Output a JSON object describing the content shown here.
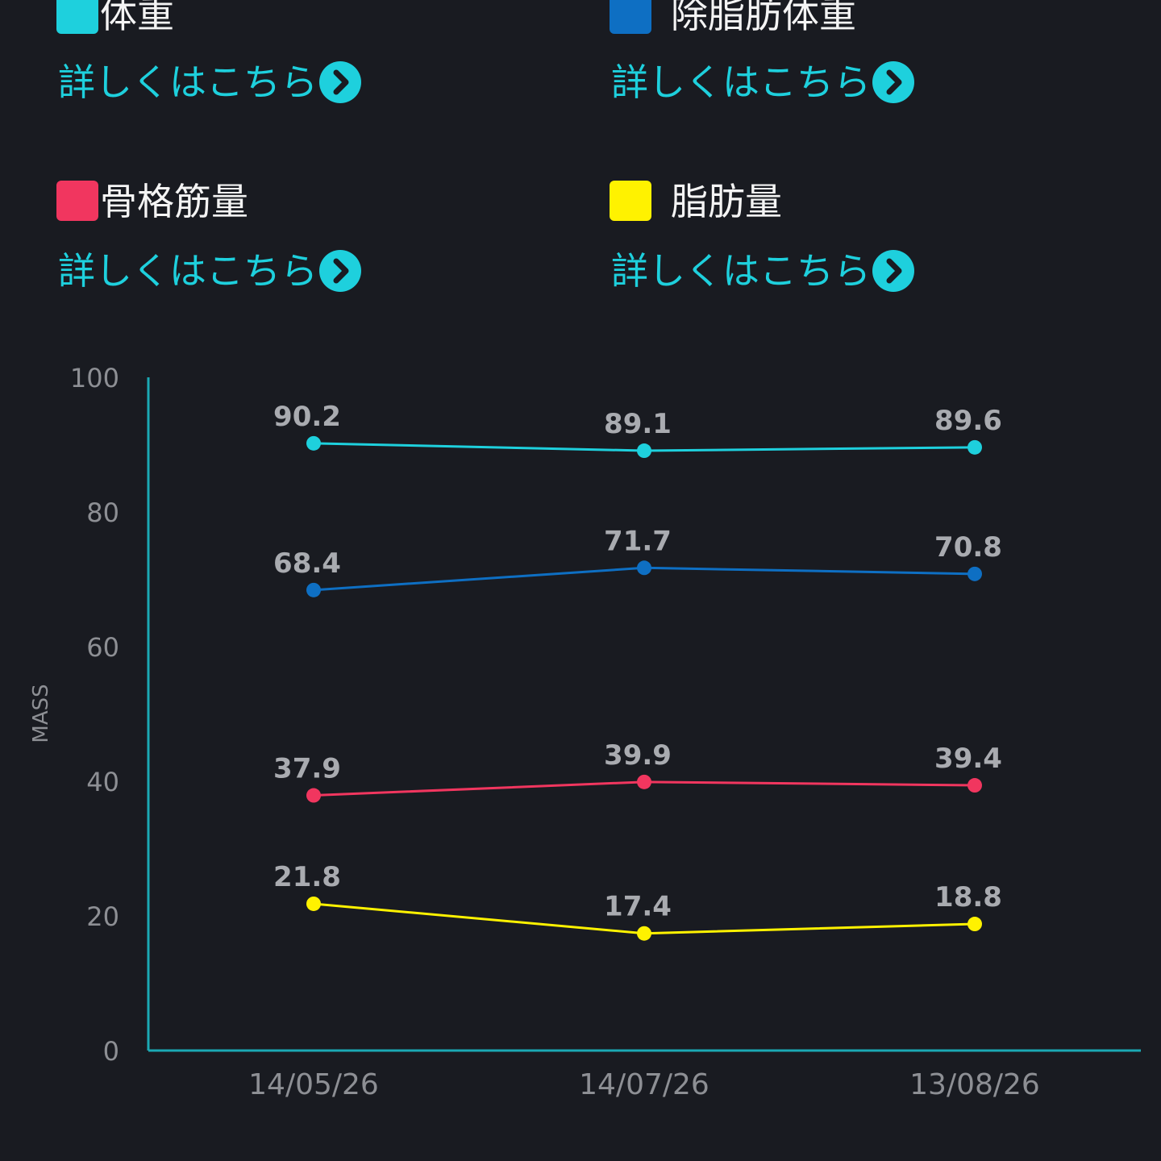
{
  "legend": [
    {
      "label": "体重",
      "color": "#1ed0dd",
      "link": "詳しくはこちら",
      "arrow_icon": "chevron-right-circle-icon"
    },
    {
      "label": "除脂肪体重",
      "color": "#0e6fc3",
      "link": "詳しくはこちら",
      "arrow_icon": "chevron-right-circle-icon"
    },
    {
      "label": "骨格筋量",
      "color": "#f1365f",
      "link": "詳しくはこちら",
      "arrow_icon": "chevron-right-circle-icon"
    },
    {
      "label": "脂肪量",
      "color": "#fff200",
      "link": "詳しくはこちら",
      "arrow_icon": "chevron-right-circle-icon"
    }
  ],
  "chart_data": {
    "type": "line",
    "ylabel": "MASS",
    "ylim": [
      0,
      100
    ],
    "yticks": [
      0,
      20,
      40,
      60,
      80,
      100
    ],
    "categories": [
      "14/05/26",
      "14/07/26",
      "13/08/26"
    ],
    "grid": false,
    "data_labels": true,
    "axis_color": "#1ba9b4",
    "series": [
      {
        "name": "体重",
        "color": "#1ed0dd",
        "values": [
          90.2,
          89.1,
          89.6
        ]
      },
      {
        "name": "除脂肪体重",
        "color": "#0e6fc3",
        "values": [
          68.4,
          71.7,
          70.8
        ]
      },
      {
        "name": "骨格筋量",
        "color": "#f1365f",
        "values": [
          37.9,
          39.9,
          39.4
        ]
      },
      {
        "name": "脂肪量",
        "color": "#fff200",
        "values": [
          21.8,
          17.4,
          18.8
        ]
      }
    ]
  }
}
